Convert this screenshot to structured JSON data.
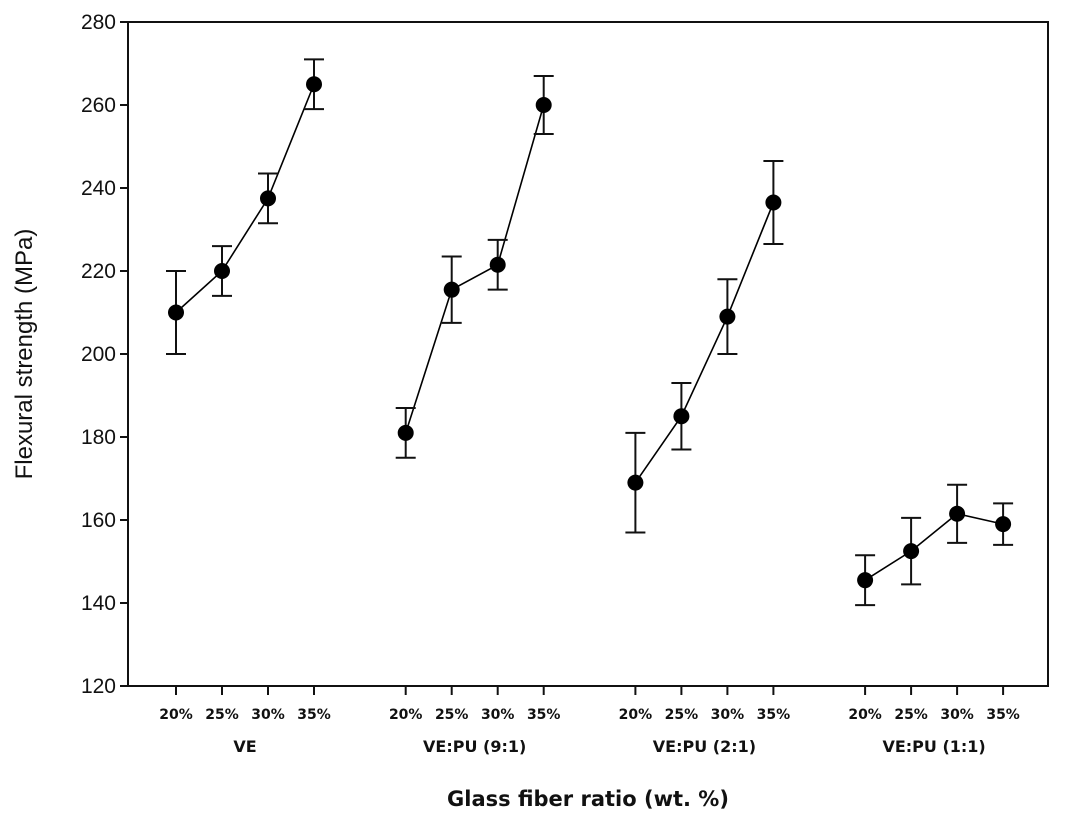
{
  "chart_data": {
    "type": "scatter",
    "title": "",
    "xlabel": "Glass fiber ratio (wt. %)",
    "ylabel": "Flexural strength (MPa)",
    "ylim": [
      120,
      280
    ],
    "yticks": [
      120,
      140,
      160,
      180,
      200,
      220,
      240,
      260,
      280
    ],
    "grid": false,
    "error_bars": true,
    "marker_color": "#000000",
    "line_color": "#000000",
    "x_tick_labels": [
      "20%",
      "25%",
      "30%",
      "35%"
    ],
    "groups": [
      {
        "label": "VE",
        "values": [
          210,
          220,
          237.5,
          265
        ],
        "errors": [
          10,
          6,
          6,
          6
        ]
      },
      {
        "label": "VE:PU (9:1)",
        "values": [
          181,
          215.5,
          221.5,
          260
        ],
        "errors": [
          6,
          8,
          6,
          7
        ]
      },
      {
        "label": "VE:PU (2:1)",
        "values": [
          169,
          185,
          209,
          236.5
        ],
        "errors": [
          12,
          8,
          9,
          10
        ]
      },
      {
        "label": "VE:PU (1:1)",
        "values": [
          145.5,
          152.5,
          161.5,
          159
        ],
        "errors": [
          6,
          8,
          7,
          5
        ]
      }
    ]
  }
}
